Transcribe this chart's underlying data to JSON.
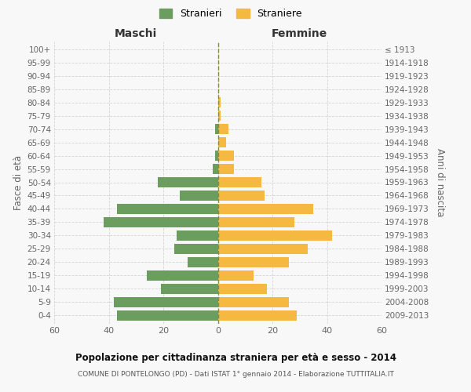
{
  "age_groups_bottom_to_top": [
    "0-4",
    "5-9",
    "10-14",
    "15-19",
    "20-24",
    "25-29",
    "30-34",
    "35-39",
    "40-44",
    "45-49",
    "50-54",
    "55-59",
    "60-64",
    "65-69",
    "70-74",
    "75-79",
    "80-84",
    "85-89",
    "90-94",
    "95-99",
    "100+"
  ],
  "birth_years_bottom_to_top": [
    "2009-2013",
    "2004-2008",
    "1999-2003",
    "1994-1998",
    "1989-1993",
    "1984-1988",
    "1979-1983",
    "1974-1978",
    "1969-1973",
    "1964-1968",
    "1959-1963",
    "1954-1958",
    "1949-1953",
    "1944-1948",
    "1939-1943",
    "1934-1938",
    "1929-1933",
    "1924-1928",
    "1919-1923",
    "1914-1918",
    "≤ 1913"
  ],
  "males_bottom_to_top": [
    37,
    38,
    21,
    26,
    11,
    16,
    15,
    42,
    37,
    14,
    22,
    2,
    1,
    0,
    1,
    0,
    0,
    0,
    0,
    0,
    0
  ],
  "females_bottom_to_top": [
    29,
    26,
    18,
    13,
    26,
    33,
    42,
    28,
    35,
    17,
    16,
    6,
    6,
    3,
    4,
    1,
    1,
    0,
    0,
    0,
    0
  ],
  "male_color": "#6b9e5e",
  "female_color": "#f5b942",
  "background_color": "#f8f8f8",
  "grid_color": "#cccccc",
  "title": "Popolazione per cittadinanza straniera per età e sesso - 2014",
  "subtitle": "COMUNE DI PONTELONGO (PD) - Dati ISTAT 1° gennaio 2014 - Elaborazione TUTTITALIA.IT",
  "xlabel_left": "Maschi",
  "xlabel_right": "Femmine",
  "ylabel_left": "Fasce di età",
  "ylabel_right": "Anni di nascita",
  "legend_male": "Stranieri",
  "legend_female": "Straniere",
  "xlim": 60
}
